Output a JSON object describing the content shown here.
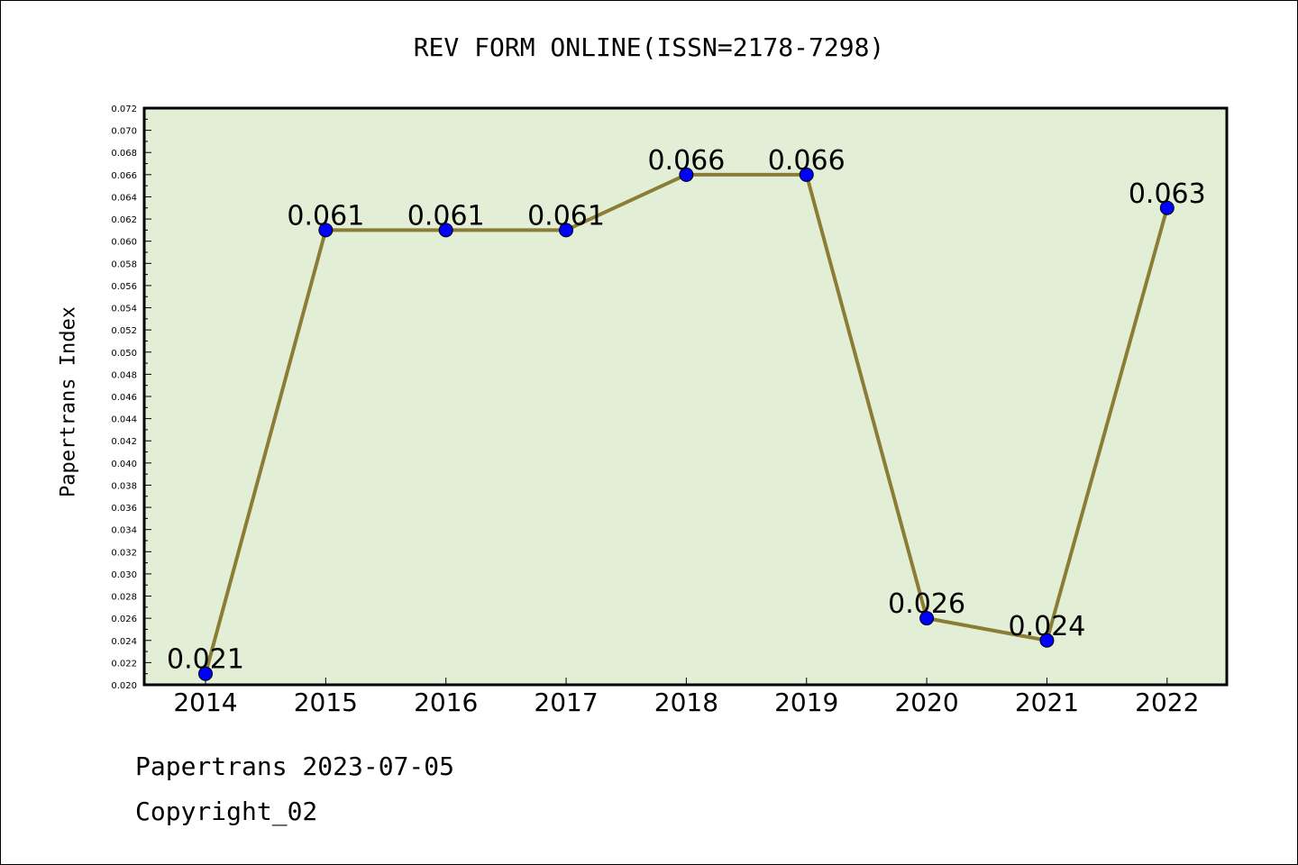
{
  "chart_data": {
    "type": "line",
    "title": "REV FORM ONLINE(ISSN=2178-7298)",
    "xlabel": "",
    "ylabel": "Papertrans Index",
    "categories": [
      "2014",
      "2015",
      "2016",
      "2017",
      "2018",
      "2019",
      "2020",
      "2021",
      "2022"
    ],
    "series": [
      {
        "values": [
          0.021,
          0.061,
          0.061,
          0.061,
          0.066,
          0.066,
          0.026,
          0.024,
          0.063
        ],
        "labels": [
          "0.021",
          "0.061",
          "0.061",
          "0.061",
          "0.066",
          "0.066",
          "0.026",
          "0.024",
          "0.063"
        ],
        "line_color": "#8b7d35",
        "marker_color": "#0000ff"
      }
    ],
    "ylim": [
      0.02,
      0.072
    ],
    "yticks": [
      "0.020",
      "0.022",
      "0.024",
      "0.026",
      "0.028",
      "0.030",
      "0.032",
      "0.034",
      "0.036",
      "0.038",
      "0.040",
      "0.042",
      "0.044",
      "0.046",
      "0.048",
      "0.050",
      "0.052",
      "0.054",
      "0.056",
      "0.058",
      "0.060",
      "0.062",
      "0.064",
      "0.066",
      "0.068",
      "0.070",
      "0.072"
    ],
    "grid": false,
    "plot_background": "#e2efd6"
  },
  "footer": {
    "line1": "Papertrans 2023-07-05",
    "line2": "Copyright_02"
  }
}
